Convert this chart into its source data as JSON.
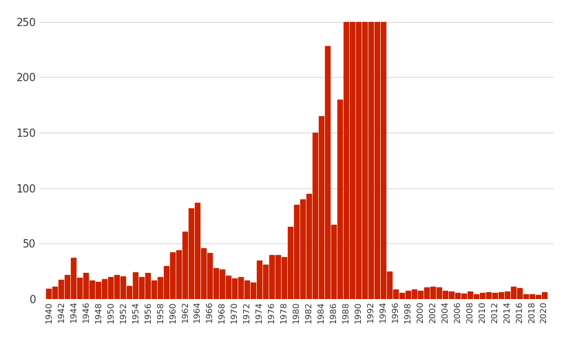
{
  "years": [
    1940,
    1941,
    1942,
    1943,
    1944,
    1945,
    1946,
    1947,
    1948,
    1949,
    1950,
    1951,
    1952,
    1953,
    1954,
    1955,
    1956,
    1957,
    1958,
    1959,
    1960,
    1961,
    1962,
    1963,
    1964,
    1965,
    1966,
    1967,
    1968,
    1969,
    1970,
    1971,
    1972,
    1973,
    1974,
    1975,
    1976,
    1977,
    1978,
    1979,
    1980,
    1981,
    1982,
    1983,
    1984,
    1985,
    1986,
    1987,
    1988,
    1989,
    1990,
    1991,
    1992,
    1993,
    1994,
    1995,
    1996,
    1997,
    1998,
    1999,
    2000,
    2001,
    2002,
    2003,
    2004,
    2005,
    2006,
    2007,
    2008,
    2009,
    2010,
    2011,
    2012,
    2013,
    2014,
    2015,
    2016,
    2017,
    2018,
    2019,
    2020
  ],
  "values": [
    9.2,
    11.0,
    17.5,
    22.0,
    37.0,
    19.5,
    23.5,
    17.0,
    15.5,
    18.0,
    20.0,
    22.0,
    20.5,
    12.0,
    24.0,
    20.0,
    23.5,
    17.0,
    20.0,
    30.0,
    42.5,
    44.0,
    61.0,
    82.0,
    87.0,
    46.0,
    41.5,
    28.0,
    27.0,
    21.0,
    19.0,
    20.0,
    17.0,
    15.0,
    35.0,
    31.0,
    40.0,
    40.0,
    38.0,
    65.0,
    85.0,
    90.0,
    95.0,
    150.0,
    165.0,
    228.0,
    67.0,
    180.0,
    250.0,
    250.0,
    250.0,
    250.0,
    250.0,
    250.0,
    250.0,
    25.0,
    9.0,
    6.0,
    7.5,
    8.5,
    7.5,
    10.5,
    11.5,
    10.5,
    7.5,
    7.0,
    5.5,
    5.0,
    7.0,
    4.5,
    5.5,
    6.5,
    5.5,
    6.5,
    7.0,
    11.0,
    10.0,
    4.5,
    4.5,
    4.0,
    6.5
  ],
  "bar_color": "#cc2200",
  "background_color": "#ffffff",
  "ylim": [
    0,
    260
  ],
  "yticks": [
    0,
    50,
    100,
    150,
    200,
    250
  ],
  "grid_color": "#d8d8d8",
  "tick_fontsize": 9,
  "ytick_fontsize": 11
}
